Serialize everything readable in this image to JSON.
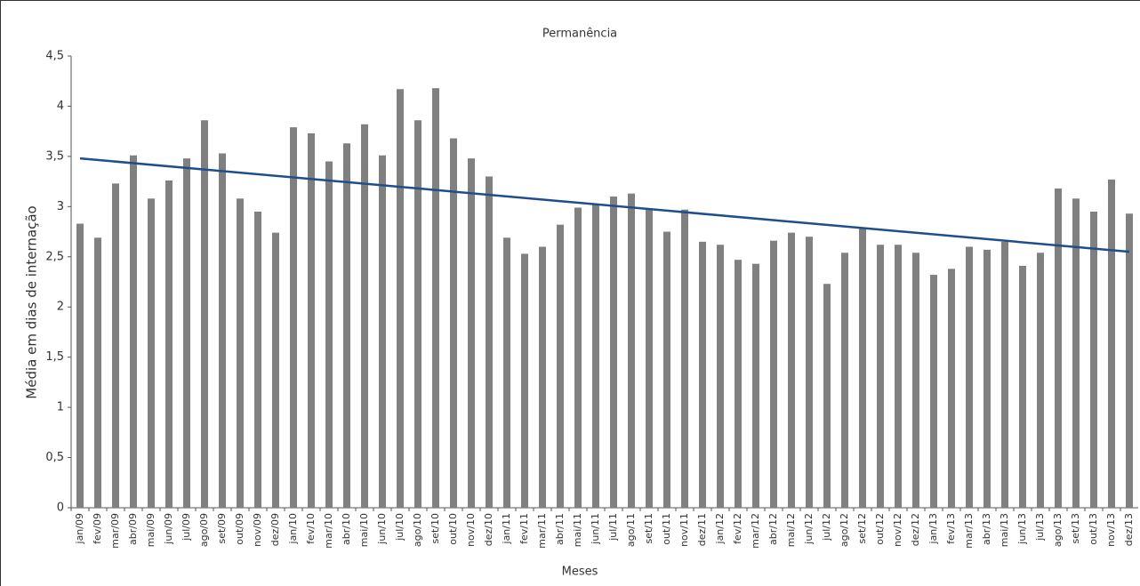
{
  "chart_data": {
    "type": "bar",
    "title": "Permanência",
    "x_label": "Meses",
    "y_label": "Média em dias de internação",
    "categories": [
      "jan/09",
      "fev/09",
      "mar/09",
      "abr/09",
      "mai/09",
      "jun/09",
      "jul/09",
      "ago/09",
      "set/09",
      "out/09",
      "nov/09",
      "dez/09",
      "jan/10",
      "fev/10",
      "mar/10",
      "abr/10",
      "mai/10",
      "jun/10",
      "jul/10",
      "ago/10",
      "set/10",
      "out/10",
      "nov/10",
      "dez/10",
      "jan/11",
      "fev/11",
      "mar/11",
      "abr/11",
      "mai/11",
      "jun/11",
      "jul/11",
      "ago/11",
      "set/11",
      "out/11",
      "nov/11",
      "dez/11",
      "jan/12",
      "fev/12",
      "mar/12",
      "abr/12",
      "mai/12",
      "jun/12",
      "jul/12",
      "ago/12",
      "set/12",
      "out/12",
      "nov/12",
      "dez/12",
      "jan/13",
      "fev/13",
      "mar/13",
      "abr/13",
      "mai/13",
      "jun/13",
      "jul/13",
      "ago/13",
      "set/13",
      "out/13",
      "nov/13",
      "dez/13"
    ],
    "values": [
      2.83,
      2.69,
      3.23,
      3.51,
      3.08,
      3.26,
      3.48,
      3.86,
      3.53,
      3.08,
      2.95,
      2.74,
      3.79,
      3.73,
      3.45,
      3.63,
      3.82,
      3.51,
      4.17,
      3.86,
      4.18,
      3.68,
      3.48,
      3.3,
      2.69,
      2.53,
      2.6,
      2.82,
      2.99,
      3.03,
      3.1,
      3.13,
      2.98,
      2.75,
      2.97,
      2.65,
      2.62,
      2.47,
      2.43,
      2.66,
      2.74,
      2.7,
      2.23,
      2.54,
      2.79,
      2.62,
      2.62,
      2.54,
      2.32,
      2.38,
      2.6,
      2.57,
      2.65,
      2.41,
      2.54,
      3.18,
      3.08,
      2.95,
      3.27,
      2.93
    ],
    "color": "#808080",
    "trend": {
      "start": 3.48,
      "end": 2.55,
      "color": "#1f4e8c"
    },
    "ylim": [
      0,
      4.5
    ],
    "yticks": [
      0,
      {
        "value": 0.5,
        "label": "0,5"
      },
      1,
      {
        "value": 1.5,
        "label": "1,5"
      },
      2,
      {
        "value": 2.5,
        "label": "2,5"
      },
      3,
      {
        "value": 3.5,
        "label": "3,5"
      },
      4,
      {
        "value": 4.5,
        "label": "4,5"
      }
    ]
  }
}
